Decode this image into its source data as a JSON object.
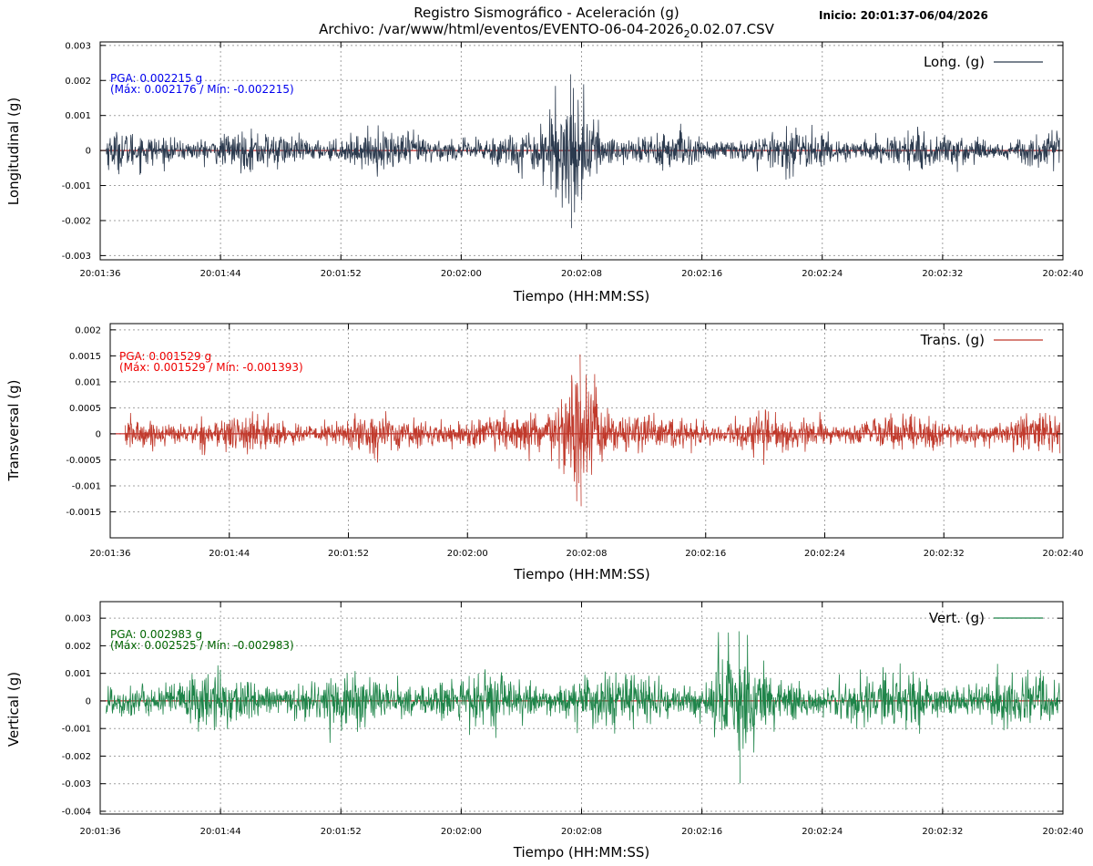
{
  "header": {
    "title": "Registro Sismográfico - Aceleración (g)",
    "subtitle_prefix": "Archivo: /var/www/html/eventos/EVENTO-06-04-2026",
    "subtitle_sub": "2",
    "subtitle_suffix": "0.02.07.CSV",
    "start": "Inicio: 20:01:37-06/04/2026"
  },
  "chart_data": [
    {
      "type": "line",
      "name": "Long. (g)",
      "ylabel": "Longitudinal (g)",
      "xlabel": "Tiempo (HH:MM:SS)",
      "color": "#2b3a4e",
      "x_ticks": [
        "20:01:36",
        "20:01:44",
        "20:01:52",
        "20:02:00",
        "20:02:08",
        "20:02:16",
        "20:02:24",
        "20:02:32",
        "20:02:40"
      ],
      "y_ticks": [
        "0.003",
        "0.002",
        "0.001",
        "0",
        "-0.001",
        "-0.002",
        "-0.003"
      ],
      "y_tick_values": [
        0.003,
        0.002,
        0.001,
        0,
        -0.001,
        -0.002,
        -0.003
      ],
      "ylim": [
        -0.00312,
        0.0031
      ],
      "xlim": [
        "20:01:36",
        "20:02:40"
      ],
      "signal_range": [
        "20:01:36.4",
        "20:02:39.8"
      ],
      "pga_line1": "PGA: 0.002215 g",
      "pga_line2": "(Máx: 0.002176 / Mín: -0.002215)",
      "pga_color": "#0000ee",
      "max": 0.002176,
      "min": -0.002215,
      "peak_time": "20:02:07.3",
      "noise_amplitude": 0.0006,
      "grid": true,
      "legend": "top-right"
    },
    {
      "type": "line",
      "name": "Trans. (g)",
      "ylabel": "Transversal (g)",
      "xlabel": "Tiempo (HH:MM:SS)",
      "color": "#c0392b",
      "x_ticks": [
        "20:01:36",
        "20:01:44",
        "20:01:52",
        "20:02:00",
        "20:02:08",
        "20:02:16",
        "20:02:24",
        "20:02:32",
        "20:02:40"
      ],
      "y_ticks": [
        "0.002",
        "0.0015",
        "0.001",
        "0.0005",
        "0",
        "-0.0005",
        "-0.001",
        "-0.0015"
      ],
      "y_tick_values": [
        0.002,
        0.0015,
        0.001,
        0.0005,
        0,
        -0.0005,
        -0.001,
        -0.0015
      ],
      "ylim": [
        -0.002,
        0.00212
      ],
      "xlim": [
        "20:01:36",
        "20:02:40"
      ],
      "signal_range": [
        "20:01:37",
        "20:02:39.8"
      ],
      "pga_line1": "PGA: 0.001529 g",
      "pga_line2": "(Máx: 0.001529 / Mín: -0.001393)",
      "pga_color": "#ee0000",
      "max": 0.001529,
      "min": -0.001393,
      "peak_time": "20:02:07.6",
      "noise_amplitude": 0.0004,
      "grid": true,
      "legend": "top-right"
    },
    {
      "type": "line",
      "name": "Vert. (g)",
      "ylabel": "Vertical (g)",
      "xlabel": "Tiempo (HH:MM:SS)",
      "color": "#1e8449",
      "x_ticks": [
        "20:01:36",
        "20:01:44",
        "20:01:52",
        "20:02:00",
        "20:02:08",
        "20:02:16",
        "20:02:24",
        "20:02:32",
        "20:02:40"
      ],
      "y_ticks": [
        "0.003",
        "0.002",
        "0.001",
        "0",
        "-0.001",
        "-0.002",
        "-0.003",
        "-0.004"
      ],
      "y_tick_values": [
        0.003,
        0.002,
        0.001,
        0,
        -0.001,
        -0.002,
        -0.003,
        -0.004
      ],
      "ylim": [
        -0.0041,
        0.0036
      ],
      "xlim": [
        "20:01:36",
        "20:02:40"
      ],
      "signal_range": [
        "20:01:36.4",
        "20:02:39.8"
      ],
      "pga_line1": "PGA: 0.002983 g",
      "pga_line2": "(Máx: 0.002525 / Mín: -0.002983)",
      "pga_color": "#006400",
      "max": 0.002525,
      "min": -0.002983,
      "peak_time": "20:02:18.5",
      "noise_amplitude": 0.0011,
      "grid": true,
      "legend": "top-right"
    }
  ]
}
